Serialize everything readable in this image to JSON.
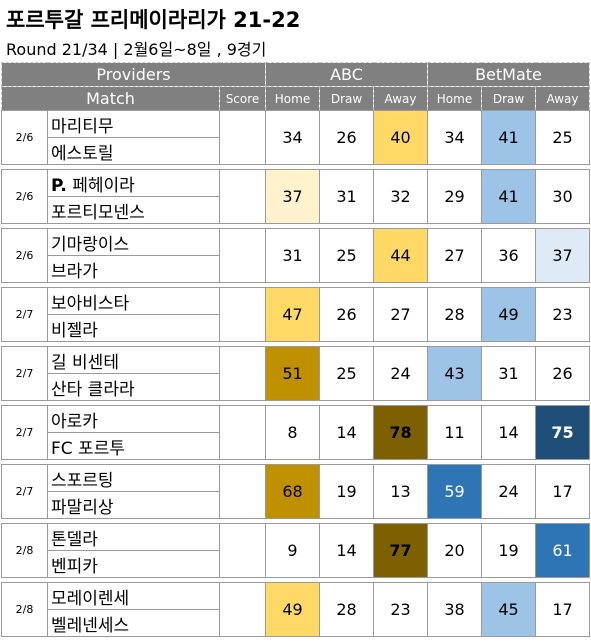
{
  "title": "포르투갈 프리메이라리가 21-22",
  "subtitle": "Round 21/34 | 2월6일~8일 , 9경기",
  "header": {
    "providers": "Providers",
    "abc": "ABC",
    "betmate": "BetMate",
    "match": "Match",
    "score": "Score",
    "home": "Home",
    "draw": "Draw",
    "away": "Away"
  },
  "colors": {
    "header_bg": "#808080",
    "heat_orange_light": "#fff2cc",
    "heat_orange_mid": "#ffd966",
    "heat_orange_dark": "#bf9000",
    "heat_orange_darkest": "#7f6000",
    "heat_blue_light": "#deebf7",
    "heat_blue_mid": "#9dc3e6",
    "heat_blue_dark": "#2e75b6",
    "heat_blue_darkest": "#1f4e79"
  },
  "matches": [
    {
      "date": "2/6",
      "home_team": "마리티무",
      "away_team": "에스토릴",
      "score": "",
      "abc": {
        "home": "34",
        "draw": "26",
        "away": "40"
      },
      "betmate": {
        "home": "34",
        "draw": "41",
        "away": "25"
      }
    },
    {
      "date": "2/6",
      "home_team": "P. 페헤이라",
      "away_team": "포르티모넨스",
      "score": "",
      "abc": {
        "home": "37",
        "draw": "31",
        "away": "32"
      },
      "betmate": {
        "home": "29",
        "draw": "41",
        "away": "30"
      }
    },
    {
      "date": "2/6",
      "home_team": "기마랑이스",
      "away_team": "브라가",
      "score": "",
      "abc": {
        "home": "31",
        "draw": "25",
        "away": "44"
      },
      "betmate": {
        "home": "27",
        "draw": "36",
        "away": "37"
      }
    },
    {
      "date": "2/7",
      "home_team": "보아비스타",
      "away_team": "비젤라",
      "score": "",
      "abc": {
        "home": "47",
        "draw": "26",
        "away": "27"
      },
      "betmate": {
        "home": "28",
        "draw": "49",
        "away": "23"
      }
    },
    {
      "date": "2/7",
      "home_team": "길 비센테",
      "away_team": "산타 클라라",
      "score": "",
      "abc": {
        "home": "51",
        "draw": "25",
        "away": "24"
      },
      "betmate": {
        "home": "43",
        "draw": "31",
        "away": "26"
      }
    },
    {
      "date": "2/7",
      "home_team": "아로카",
      "away_team": "FC 포르투",
      "score": "",
      "abc": {
        "home": "8",
        "draw": "14",
        "away": "78"
      },
      "betmate": {
        "home": "11",
        "draw": "14",
        "away": "75"
      }
    },
    {
      "date": "2/7",
      "home_team": "스포르팅",
      "away_team": "파말리상",
      "score": "",
      "abc": {
        "home": "68",
        "draw": "19",
        "away": "13"
      },
      "betmate": {
        "home": "59",
        "draw": "24",
        "away": "17"
      }
    },
    {
      "date": "2/8",
      "home_team": "톤델라",
      "away_team": "벤피카",
      "score": "",
      "abc": {
        "home": "9",
        "draw": "14",
        "away": "77"
      },
      "betmate": {
        "home": "20",
        "draw": "19",
        "away": "61"
      }
    },
    {
      "date": "2/8",
      "home_team": "모레이렌세",
      "away_team": "벨레넨세스",
      "score": "",
      "abc": {
        "home": "49",
        "draw": "28",
        "away": "23"
      },
      "betmate": {
        "home": "38",
        "draw": "45",
        "away": "17"
      }
    }
  ]
}
